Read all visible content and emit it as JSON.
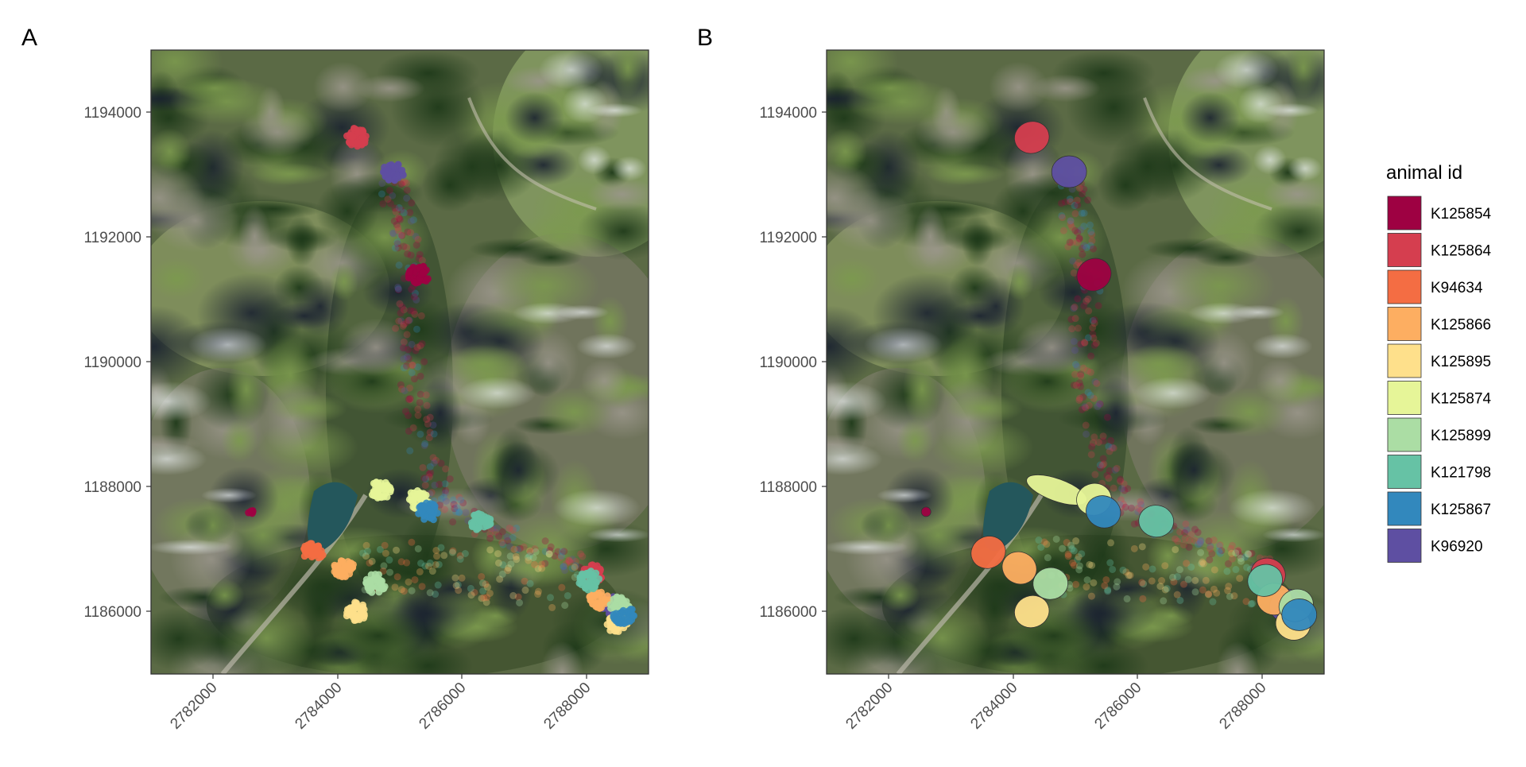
{
  "panels": [
    {
      "letter": "A",
      "style": "points"
    },
    {
      "letter": "B",
      "style": "polygons"
    }
  ],
  "axes": {
    "x_ticks": [
      "2782000",
      "2784000",
      "2786000",
      "2788000"
    ],
    "y_ticks": [
      "1186000",
      "1188000",
      "1190000",
      "1192000",
      "1194000"
    ],
    "x_range": [
      2781000,
      2789000
    ],
    "y_range": [
      1185000,
      1195000
    ],
    "grid": false
  },
  "legend": {
    "title": "animal id",
    "placement": "right",
    "items": [
      {
        "id": "K125854",
        "color": "#9e0142"
      },
      {
        "id": "K125864",
        "color": "#d53e4f"
      },
      {
        "id": "K94634",
        "color": "#f46d43"
      },
      {
        "id": "K125866",
        "color": "#fdae61"
      },
      {
        "id": "K125895",
        "color": "#fee08b"
      },
      {
        "id": "K125874",
        "color": "#e6f598"
      },
      {
        "id": "K125899",
        "color": "#abdda4"
      },
      {
        "id": "K121798",
        "color": "#66c2a5"
      },
      {
        "id": "K125867",
        "color": "#3288bd"
      },
      {
        "id": "K96920",
        "color": "#5e4fa2"
      }
    ]
  },
  "chart_data": {
    "type": "scatter",
    "title": "",
    "xlabel": "",
    "ylabel": "",
    "xlim": [
      2781000,
      2789000
    ],
    "ylim": [
      1185000,
      1195000
    ],
    "background": "aerial orthophoto",
    "clusters": [
      {
        "id": "K125854",
        "x": 2785300,
        "y": 1191400
      },
      {
        "id": "K125854",
        "x": 2782600,
        "y": 1187600
      },
      {
        "id": "K125864",
        "x": 2784300,
        "y": 1193600
      },
      {
        "id": "K125864",
        "x": 2788100,
        "y": 1186600
      },
      {
        "id": "K96920",
        "x": 2784900,
        "y": 1193050
      },
      {
        "id": "K96920",
        "x": 2788400,
        "y": 1186100
      },
      {
        "id": "K125874",
        "x": 2784700,
        "y": 1187950
      },
      {
        "id": "K125874",
        "x": 2785300,
        "y": 1187800
      },
      {
        "id": "K125866",
        "x": 2784100,
        "y": 1186700
      },
      {
        "id": "K125866",
        "x": 2788200,
        "y": 1186200
      },
      {
        "id": "K125895",
        "x": 2784300,
        "y": 1186000
      },
      {
        "id": "K125895",
        "x": 2788500,
        "y": 1185800
      },
      {
        "id": "K125899",
        "x": 2784600,
        "y": 1186450
      },
      {
        "id": "K125899",
        "x": 2788550,
        "y": 1186100
      },
      {
        "id": "K121798",
        "x": 2786300,
        "y": 1187450
      },
      {
        "id": "K121798",
        "x": 2788050,
        "y": 1186500
      },
      {
        "id": "K125867",
        "x": 2785450,
        "y": 1187600
      },
      {
        "id": "K125867",
        "x": 2788600,
        "y": 1185950
      },
      {
        "id": "K94634",
        "x": 2783600,
        "y": 1186950
      }
    ]
  }
}
